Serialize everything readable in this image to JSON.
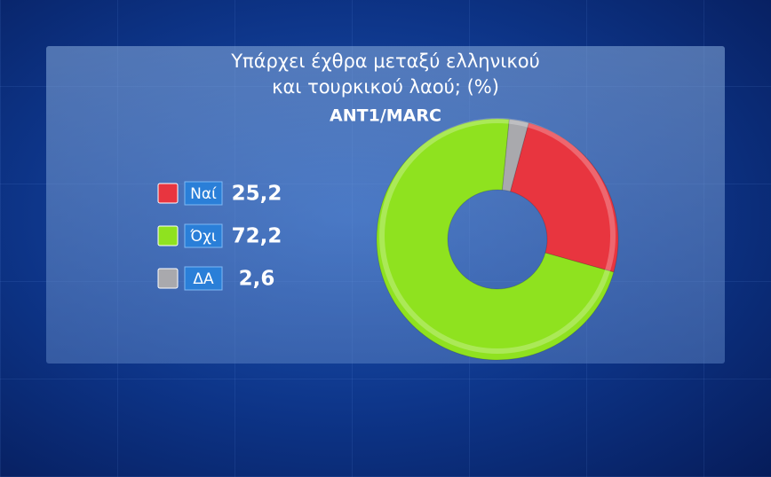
{
  "chart_data": {
    "type": "donut",
    "title": [
      "Υπάρχει έχθρα μεταξύ ελληνικού",
      "και τουρκικού λαού; (%)"
    ],
    "subtitle": "ANT1/MARC",
    "categories": [
      "Ναί",
      "Όχι",
      "ΔΑ"
    ],
    "values": [
      25.2,
      72.2,
      2.6
    ],
    "value_labels": [
      "25,2",
      "72,2",
      "2,6"
    ],
    "colors": [
      "#e8353f",
      "#8fe21f",
      "#a9a9ad"
    ]
  }
}
